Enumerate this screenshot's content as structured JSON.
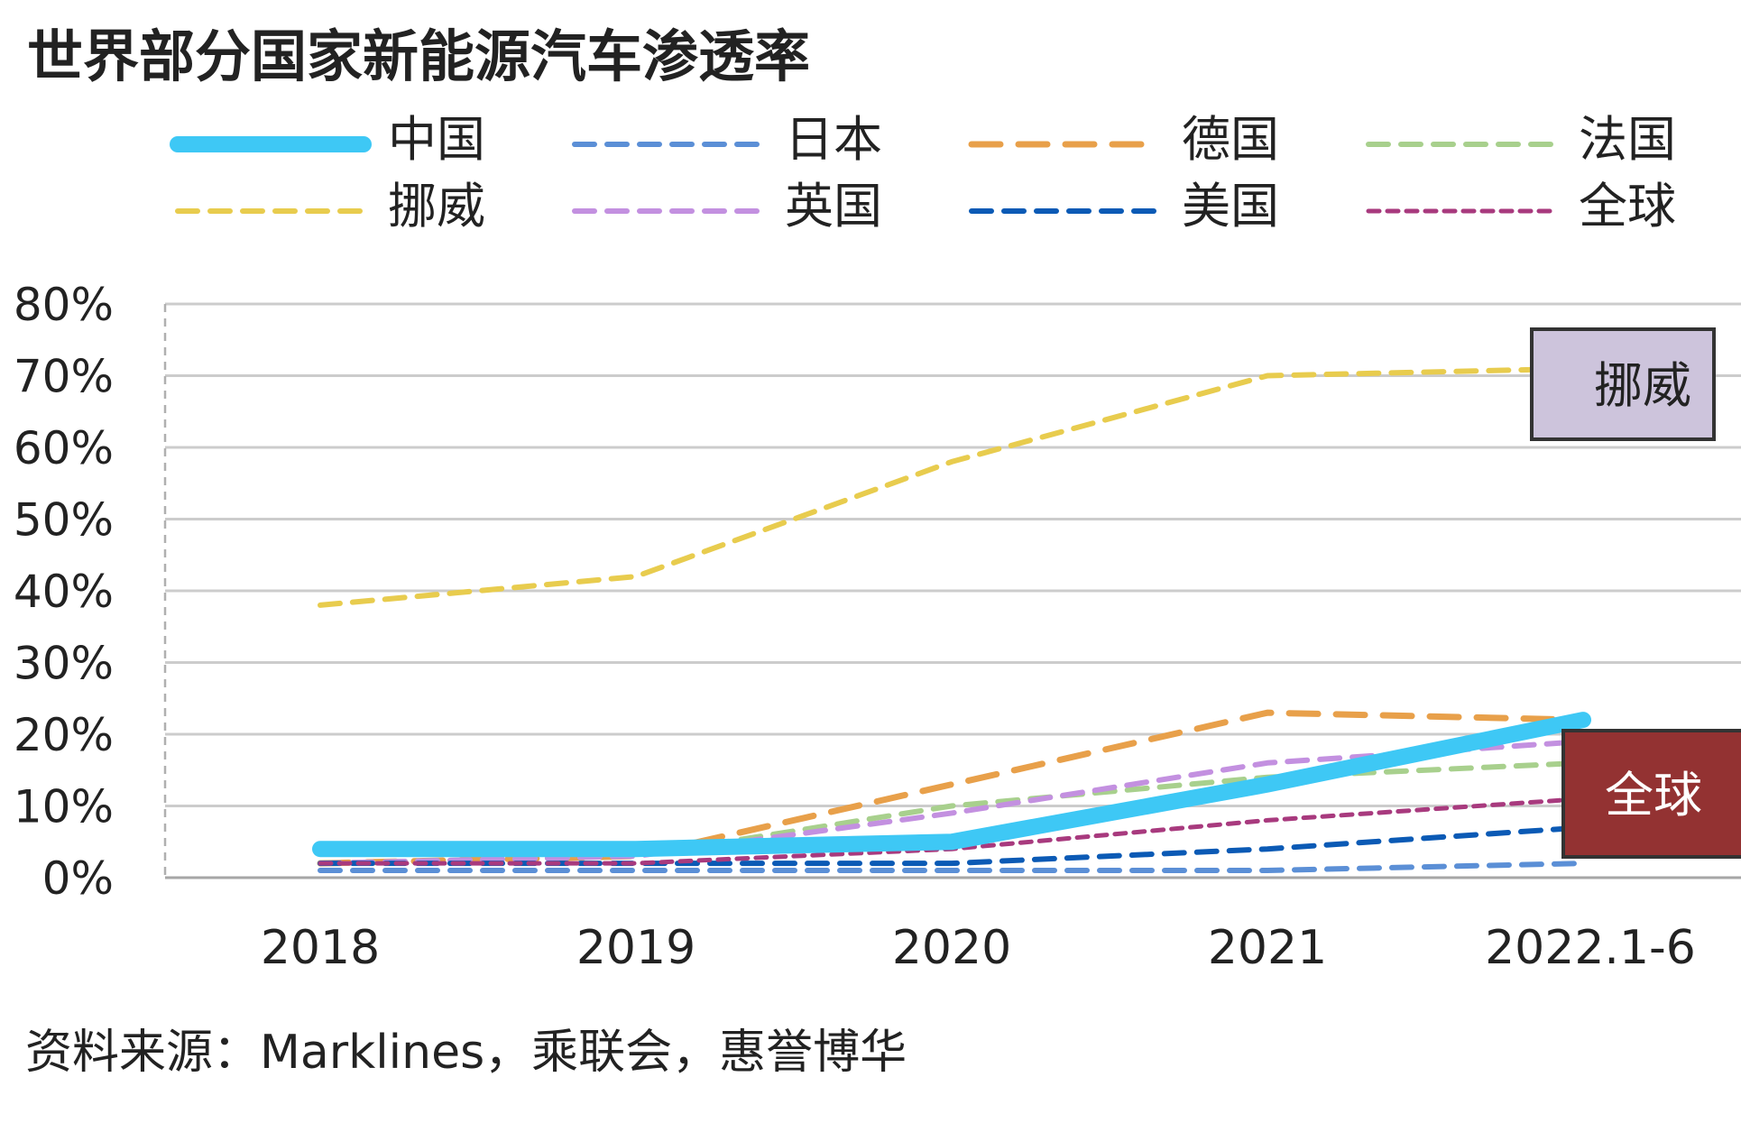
{
  "title": "世界部分国家新能源汽车渗透率",
  "source": "资料来源：Marklines，乘联会，惠誉博华",
  "chart_data": {
    "type": "line",
    "categories": [
      "2018",
      "2019",
      "2020",
      "2021",
      "2022.1-6"
    ],
    "ylim": [
      0,
      80
    ],
    "yticks": [
      "0%",
      "10%",
      "20%",
      "30%",
      "40%",
      "50%",
      "60%",
      "70%",
      "80%"
    ],
    "ytick_values": [
      0,
      10,
      20,
      30,
      40,
      50,
      60,
      70,
      80
    ],
    "grid": true,
    "legend_position": "top",
    "series": [
      {
        "name": "中国",
        "values": [
          4,
          4,
          5,
          13,
          22
        ],
        "color": "#3ec8f5",
        "style": "solid-thick"
      },
      {
        "name": "日本",
        "values": [
          1,
          1,
          1,
          1,
          2
        ],
        "color": "#5b8fd6",
        "style": "dash"
      },
      {
        "name": "德国",
        "values": [
          2,
          3,
          13,
          23,
          22
        ],
        "color": "#e8a04a",
        "style": "dash-long"
      },
      {
        "name": "法国",
        "values": [
          2,
          3,
          10,
          14,
          16
        ],
        "color": "#a8d08d",
        "style": "dash"
      },
      {
        "name": "挪威",
        "values": [
          38,
          42,
          58,
          70,
          71
        ],
        "color": "#e8cc4e",
        "style": "dash"
      },
      {
        "name": "英国",
        "values": [
          2,
          3,
          9,
          16,
          19
        ],
        "color": "#c390e0",
        "style": "dash"
      },
      {
        "name": "美国",
        "values": [
          2,
          2,
          2,
          4,
          7
        ],
        "color": "#0b5ab5",
        "style": "dash"
      },
      {
        "name": "全球",
        "values": [
          2,
          2,
          4,
          8,
          11
        ],
        "color": "#a83a7e",
        "style": "dash-fine"
      }
    ],
    "annotations": [
      {
        "text": "挪威",
        "fill": "#cdc4dc",
        "text_color": "#222222"
      },
      {
        "text": "全球",
        "fill": "#933232",
        "text_color": "#ffffff"
      }
    ]
  }
}
